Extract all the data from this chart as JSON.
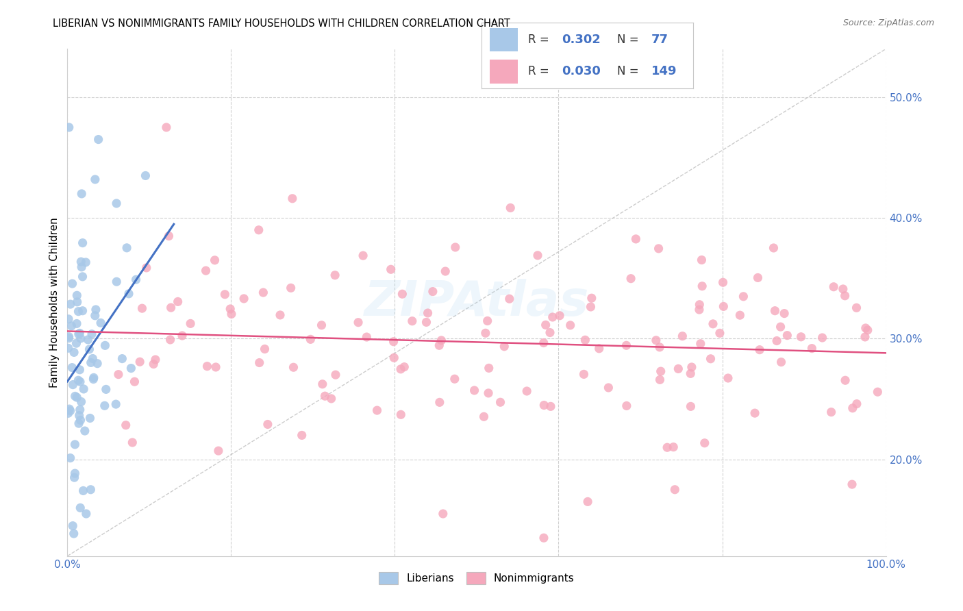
{
  "title": "LIBERIAN VS NONIMMIGRANTS FAMILY HOUSEHOLDS WITH CHILDREN CORRELATION CHART",
  "source": "Source: ZipAtlas.com",
  "ylabel": "Family Households with Children",
  "R_liberian": 0.302,
  "N_liberian": 77,
  "R_nonimmigrant": 0.03,
  "N_nonimmigrant": 149,
  "watermark": "ZIPAtlas",
  "liberian_color": "#a8c8e8",
  "nonimmigrant_color": "#f5a8bc",
  "liberian_line_color": "#4472c4",
  "nonimmigrant_line_color": "#e05080",
  "diagonal_color": "#c0c0c0",
  "legend_box_liberian": "#a8c8e8",
  "legend_box_nonimmigrant": "#f5a8bc",
  "legend_text_color": "#4472c4",
  "axis_label_color": "#4472c4",
  "xmin": 0.0,
  "xmax": 1.0,
  "ymin": 0.12,
  "ymax": 0.54,
  "yticks": [
    0.2,
    0.3,
    0.4,
    0.5
  ],
  "ytick_labels": [
    "20.0%",
    "30.0%",
    "40.0%",
    "50.0%"
  ]
}
